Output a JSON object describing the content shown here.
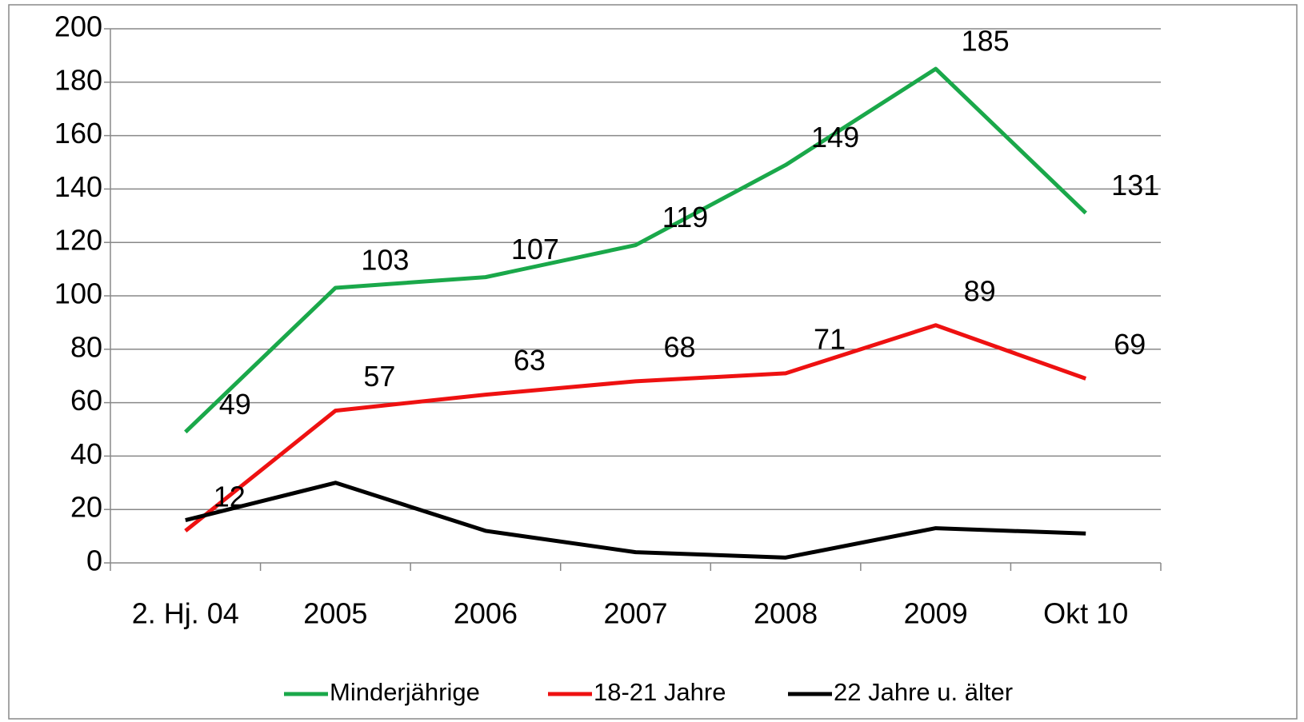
{
  "chart_data": {
    "type": "line",
    "categories": [
      "2. Hj. 04",
      "2005",
      "2006",
      "2007",
      "2008",
      "2009",
      "Okt 10"
    ],
    "series": [
      {
        "name": "Minderjährige",
        "color": "#1aa84a",
        "values": [
          49,
          103,
          107,
          119,
          149,
          185,
          131
        ],
        "data_labels": true
      },
      {
        "name": "18-21 Jahre",
        "color": "#ee1111",
        "values": [
          12,
          57,
          63,
          68,
          71,
          89,
          69
        ],
        "data_labels": true
      },
      {
        "name": "22 Jahre u. älter",
        "color": "#000000",
        "values": [
          16,
          30,
          12,
          4,
          2,
          13,
          11
        ],
        "data_labels": false
      }
    ],
    "ylim": [
      0,
      200
    ],
    "yticks": [
      0,
      20,
      40,
      60,
      80,
      100,
      120,
      140,
      160,
      180,
      200
    ],
    "grid": true,
    "legend": "bottom"
  }
}
